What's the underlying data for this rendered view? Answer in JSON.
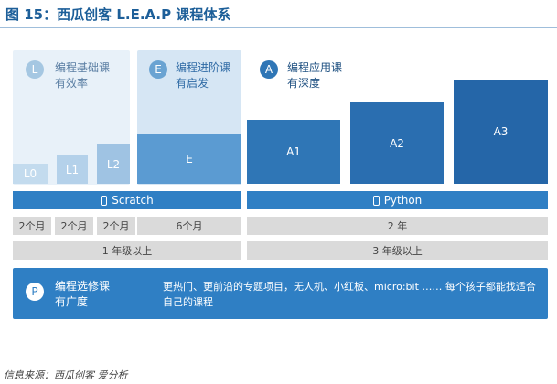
{
  "title": "图 15：西瓜创客 L.E.A.P 课程体系",
  "tiers": {
    "l": {
      "letter": "L",
      "line1": "编程基础课",
      "line2": "有效率"
    },
    "e": {
      "letter": "E",
      "line1": "编程进阶课",
      "line2": "有启发"
    },
    "a": {
      "letter": "A",
      "line1": "编程应用课",
      "line2": "有深度"
    },
    "p": {
      "letter": "P",
      "line1": "编程选修课",
      "line2": "有广度",
      "description": "更热门、更前沿的专题项目，无人机、小红板、micro:bit …… 每个孩子都能找适合自己的课程"
    }
  },
  "levels": [
    "L0",
    "L1",
    "L2",
    "E",
    "A1",
    "A2",
    "A3"
  ],
  "technologies": [
    "Scratch",
    "Python"
  ],
  "durations": [
    "2个月",
    "2个月",
    "2个月",
    "6个月",
    "2 年"
  ],
  "grades": [
    "1 年级以上",
    "3 年级以上"
  ],
  "source": "信息来源：西瓜创客 爱分析",
  "colors": {
    "title": "#1d5f99",
    "primary": "#2f7fc4",
    "gray": "#dadada"
  },
  "icons": {
    "technology": "device-icon"
  }
}
